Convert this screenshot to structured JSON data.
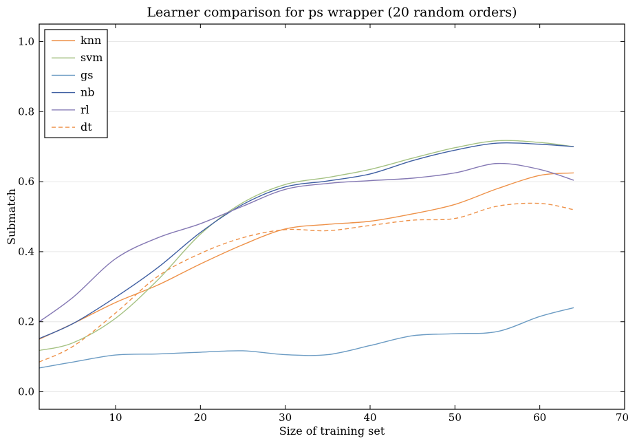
{
  "chart_data": {
    "type": "line",
    "title": "Learner comparison for ps wrapper (20 random orders)",
    "xlabel": "Size of training set",
    "ylabel": "Submatch",
    "xlim": [
      1,
      70
    ],
    "ylim": [
      -0.05,
      1.05
    ],
    "xticks": [
      10,
      20,
      30,
      40,
      50,
      60,
      70
    ],
    "yticks": [
      0.0,
      0.2,
      0.4,
      0.6,
      0.8,
      1.0
    ],
    "xtick_labels": [
      "10",
      "20",
      "30",
      "40",
      "50",
      "60",
      "70"
    ],
    "ytick_labels": [
      "0.0",
      "0.2",
      "0.4",
      "0.6",
      "0.8",
      "1.0"
    ],
    "grid": "horizontal",
    "legend_position": "top-left",
    "series": [
      {
        "name": "knn",
        "color": "#ee9148",
        "dash": "solid",
        "x": [
          1,
          5,
          10,
          15,
          20,
          25,
          30,
          35,
          40,
          45,
          50,
          55,
          60,
          64
        ],
        "y": [
          0.15,
          0.195,
          0.255,
          0.305,
          0.365,
          0.42,
          0.465,
          0.478,
          0.487,
          0.508,
          0.535,
          0.58,
          0.618,
          0.625
        ]
      },
      {
        "name": "svm",
        "color": "#a5c283",
        "dash": "solid",
        "x": [
          1,
          5,
          10,
          15,
          20,
          25,
          30,
          35,
          40,
          45,
          50,
          55,
          60,
          64
        ],
        "y": [
          0.118,
          0.14,
          0.21,
          0.32,
          0.45,
          0.54,
          0.592,
          0.612,
          0.635,
          0.667,
          0.697,
          0.717,
          0.712,
          0.7
        ]
      },
      {
        "name": "gs",
        "color": "#6b9bc3",
        "dash": "solid",
        "x": [
          1,
          5,
          10,
          15,
          20,
          25,
          30,
          35,
          40,
          45,
          50,
          55,
          60,
          64
        ],
        "y": [
          0.068,
          0.085,
          0.105,
          0.108,
          0.113,
          0.117,
          0.106,
          0.106,
          0.132,
          0.16,
          0.166,
          0.172,
          0.215,
          0.24
        ]
      },
      {
        "name": "nb",
        "color": "#3f5fa2",
        "dash": "solid",
        "x": [
          1,
          5,
          10,
          15,
          20,
          25,
          30,
          35,
          40,
          45,
          50,
          55,
          60,
          64
        ],
        "y": [
          0.152,
          0.195,
          0.27,
          0.355,
          0.455,
          0.535,
          0.585,
          0.602,
          0.622,
          0.66,
          0.69,
          0.71,
          0.707,
          0.7
        ]
      },
      {
        "name": "rl",
        "color": "#8579b4",
        "dash": "solid",
        "x": [
          1,
          5,
          10,
          15,
          20,
          25,
          30,
          35,
          40,
          45,
          50,
          55,
          60,
          64
        ],
        "y": [
          0.2,
          0.27,
          0.38,
          0.44,
          0.48,
          0.53,
          0.578,
          0.595,
          0.603,
          0.61,
          0.625,
          0.652,
          0.635,
          0.604
        ]
      },
      {
        "name": "dt",
        "color": "#ee9148",
        "dash": "dashed",
        "x": [
          1,
          5,
          10,
          15,
          20,
          25,
          30,
          35,
          40,
          45,
          50,
          55,
          60,
          64
        ],
        "y": [
          0.085,
          0.13,
          0.225,
          0.33,
          0.395,
          0.44,
          0.463,
          0.46,
          0.475,
          0.49,
          0.495,
          0.53,
          0.538,
          0.52
        ]
      }
    ]
  }
}
